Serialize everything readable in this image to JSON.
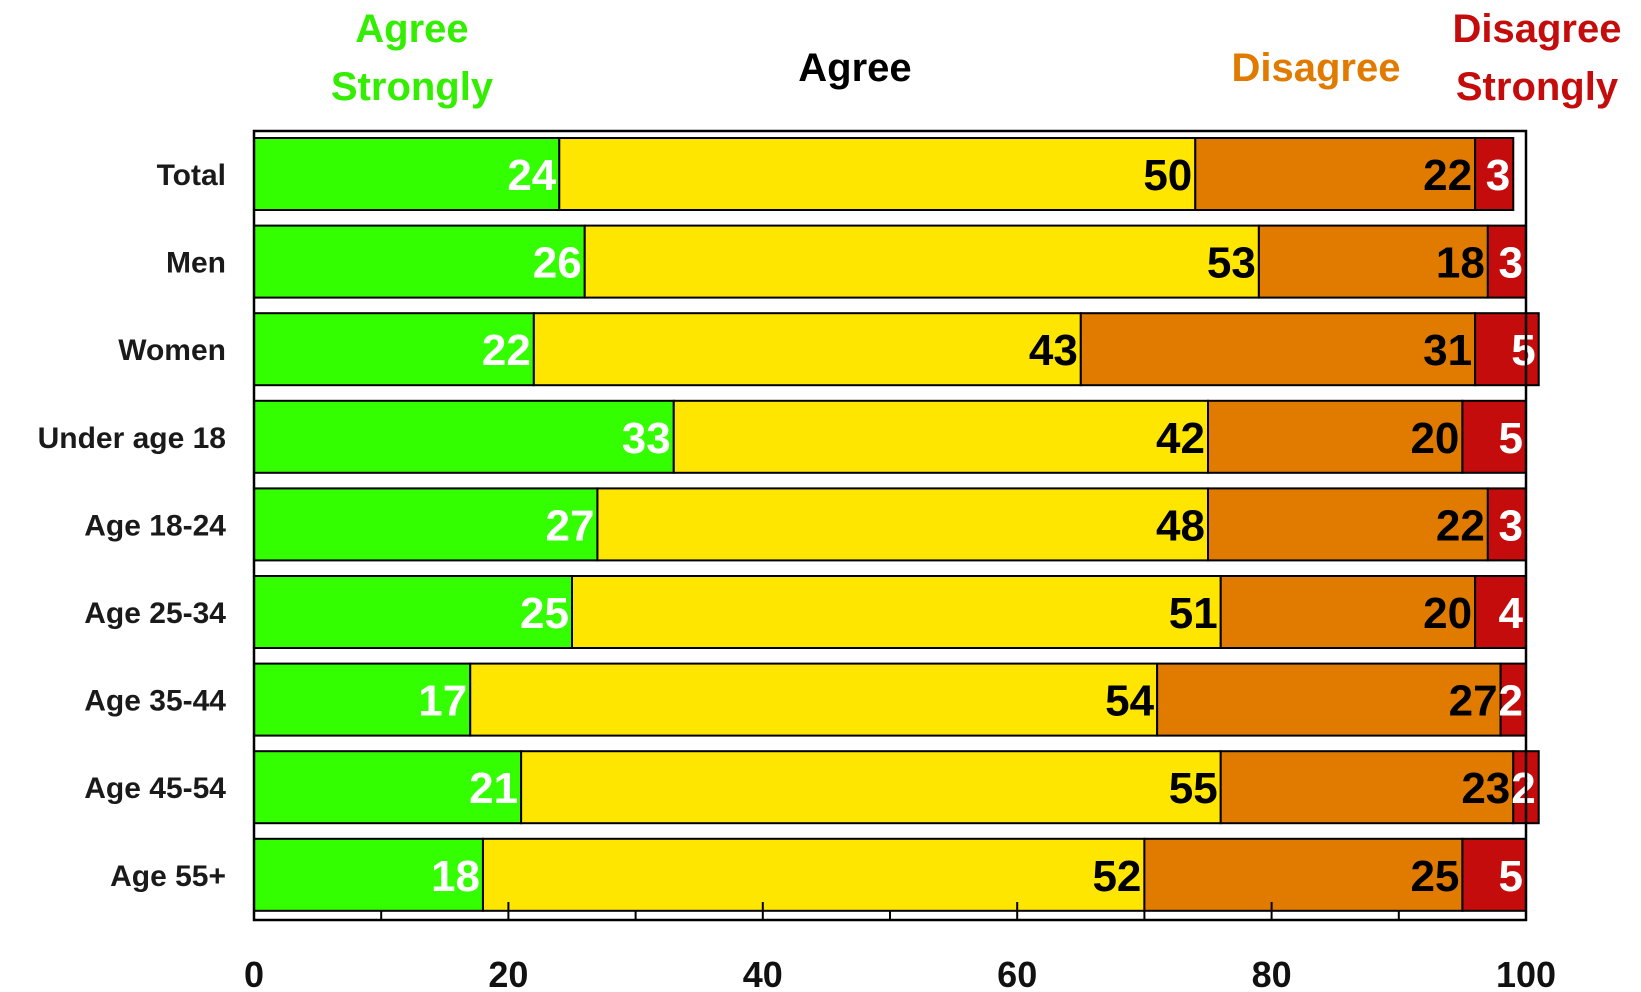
{
  "chart_data": {
    "type": "bar",
    "orientation": "horizontal",
    "stacked": true,
    "categories": [
      "Total",
      "Men",
      "Women",
      "Under age 18",
      "Age 18-24",
      "Age 25-34",
      "Age 35-44",
      "Age 45-54",
      "Age 55+"
    ],
    "series": [
      {
        "name": "Agree Strongly",
        "label_lines": [
          "Agree",
          "Strongly"
        ],
        "color": "#33ff00",
        "label_color": "#33ee00",
        "value_text_color": "#ffffff",
        "values": [
          24,
          26,
          22,
          33,
          27,
          25,
          17,
          21,
          18
        ]
      },
      {
        "name": "Agree",
        "label_lines": [
          "Agree"
        ],
        "color": "#ffe600",
        "label_color": "#000000",
        "value_text_color": "#000000",
        "values": [
          50,
          53,
          43,
          42,
          48,
          51,
          54,
          55,
          52
        ]
      },
      {
        "name": "Disagree",
        "label_lines": [
          "Disagree"
        ],
        "color": "#e07b00",
        "label_color": "#e07b00",
        "value_text_color": "#000000",
        "values": [
          22,
          18,
          31,
          20,
          22,
          20,
          27,
          23,
          25
        ]
      },
      {
        "name": "Disagree Strongly",
        "label_lines": [
          "Disagree",
          "Strongly"
        ],
        "color": "#c40c0c",
        "label_color": "#c40c0c",
        "value_text_color": "#ffffff",
        "values": [
          3,
          3,
          5,
          5,
          3,
          4,
          2,
          2,
          5
        ]
      }
    ],
    "x_ticks": [
      "0",
      "20",
      "40",
      "60",
      "80",
      "100"
    ],
    "xlim": [
      0,
      100
    ],
    "legend_position": "top"
  }
}
